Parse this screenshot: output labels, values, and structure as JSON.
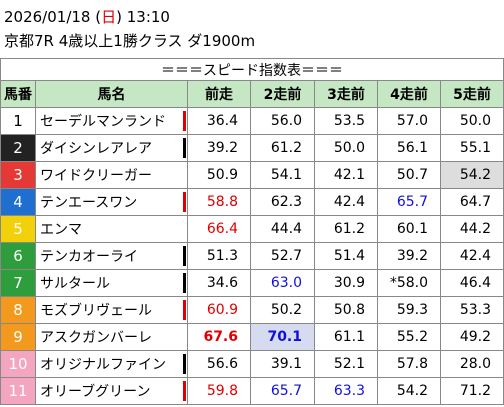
{
  "header": {
    "date": "2026/01/18",
    "weekday": "日",
    "time": "13:10",
    "race": "京都7R 4歳以上1勝クラス ダ1900m"
  },
  "table": {
    "title": "＝＝＝スピード指数表＝＝＝",
    "columns": [
      "馬番",
      "馬名",
      "前走",
      "2走前",
      "3走前",
      "4走前",
      "5走前"
    ],
    "rows": [
      [
        "1",
        "セーデルマンランド",
        "36.4",
        "56.0",
        "53.5",
        "57.0",
        "50.0"
      ],
      [
        "2",
        "ダイシンレアレア",
        "39.2",
        "61.2",
        "50.0",
        "56.1",
        "55.1"
      ],
      [
        "3",
        "ワイドクリーガー",
        "50.9",
        "54.1",
        "42.1",
        "50.7",
        "54.2"
      ],
      [
        "4",
        "テンエースワン",
        "58.8",
        "62.3",
        "42.4",
        "65.7",
        "64.7"
      ],
      [
        "5",
        "エンマ",
        "66.4",
        "44.4",
        "61.2",
        "60.1",
        "44.2"
      ],
      [
        "6",
        "テンカオーライ",
        "51.3",
        "52.7",
        "51.4",
        "39.2",
        "42.4"
      ],
      [
        "7",
        "サルタール",
        "34.6",
        "63.0",
        "30.9",
        "*58.0",
        "46.4"
      ],
      [
        "8",
        "モズブリヴェール",
        "60.9",
        "50.2",
        "50.8",
        "59.3",
        "53.3"
      ],
      [
        "9",
        "アスクガンバーレ",
        "67.6",
        "70.1",
        "61.1",
        "55.2",
        "49.2"
      ],
      [
        "10",
        "オリジナルファイン",
        "56.6",
        "39.1",
        "52.1",
        "57.8",
        "28.0"
      ],
      [
        "11",
        "オリーブグリーン",
        "59.8",
        "65.7",
        "63.3",
        "54.2",
        "71.2"
      ]
    ]
  }
}
